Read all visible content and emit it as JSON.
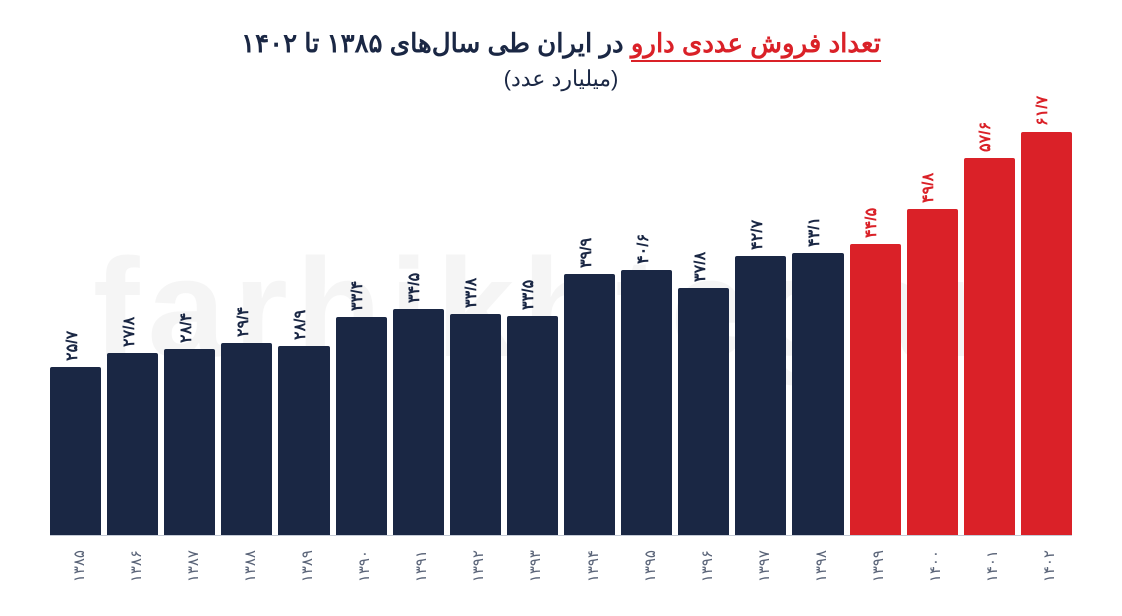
{
  "title_red": "تعداد فروش عددی دارو",
  "title_rest": " در ایران طی سال‌های ۱۳۸۵ تا ۱۴۰۲",
  "subtitle": "(میلیارد عدد)",
  "watermark": "farhikhtegan",
  "chart": {
    "type": "bar",
    "ylim_max": 65,
    "bar_color_dark": "#1a2744",
    "bar_color_red": "#da2128",
    "label_color_dark": "#1a2744",
    "background": "#ffffff",
    "axis_color": "#c5cbd6",
    "xlabel_color": "#5a6478",
    "label_fontsize": 16,
    "xlabel_fontsize": 15,
    "bars": [
      {
        "year": "۱۳۸۵",
        "value": 25.7,
        "label": "۲۵/۷",
        "highlight": false
      },
      {
        "year": "۱۳۸۶",
        "value": 27.8,
        "label": "۲۷/۸",
        "highlight": false
      },
      {
        "year": "۱۳۸۷",
        "value": 28.4,
        "label": "۲۸/۴",
        "highlight": false
      },
      {
        "year": "۱۳۸۸",
        "value": 29.4,
        "label": "۲۹/۴",
        "highlight": false
      },
      {
        "year": "۱۳۸۹",
        "value": 28.9,
        "label": "۲۸/۹",
        "highlight": false
      },
      {
        "year": "۱۳۹۰",
        "value": 33.4,
        "label": "۳۳/۴",
        "highlight": false
      },
      {
        "year": "۱۳۹۱",
        "value": 34.5,
        "label": "۳۴/۵",
        "highlight": false
      },
      {
        "year": "۱۳۹۲",
        "value": 33.8,
        "label": "۳۳/۸",
        "highlight": false
      },
      {
        "year": "۱۳۹۳",
        "value": 33.5,
        "label": "۳۳/۵",
        "highlight": false
      },
      {
        "year": "۱۳۹۴",
        "value": 39.9,
        "label": "۳۹/۹",
        "highlight": false
      },
      {
        "year": "۱۳۹۵",
        "value": 40.6,
        "label": "۴۰/۶",
        "highlight": false
      },
      {
        "year": "۱۳۹۶",
        "value": 37.8,
        "label": "۳۷/۸",
        "highlight": false
      },
      {
        "year": "۱۳۹۷",
        "value": 42.7,
        "label": "۴۲/۷",
        "highlight": false
      },
      {
        "year": "۱۳۹۸",
        "value": 43.1,
        "label": "۴۳/۱",
        "highlight": false
      },
      {
        "year": "۱۳۹۹",
        "value": 44.5,
        "label": "۴۴/۵",
        "highlight": true
      },
      {
        "year": "۱۴۰۰",
        "value": 49.8,
        "label": "۴۹/۸",
        "highlight": true
      },
      {
        "year": "۱۴۰۱",
        "value": 57.6,
        "label": "۵۷/۶",
        "highlight": true
      },
      {
        "year": "۱۴۰۲",
        "value": 61.7,
        "label": "۶۱/۷",
        "highlight": true
      }
    ]
  }
}
